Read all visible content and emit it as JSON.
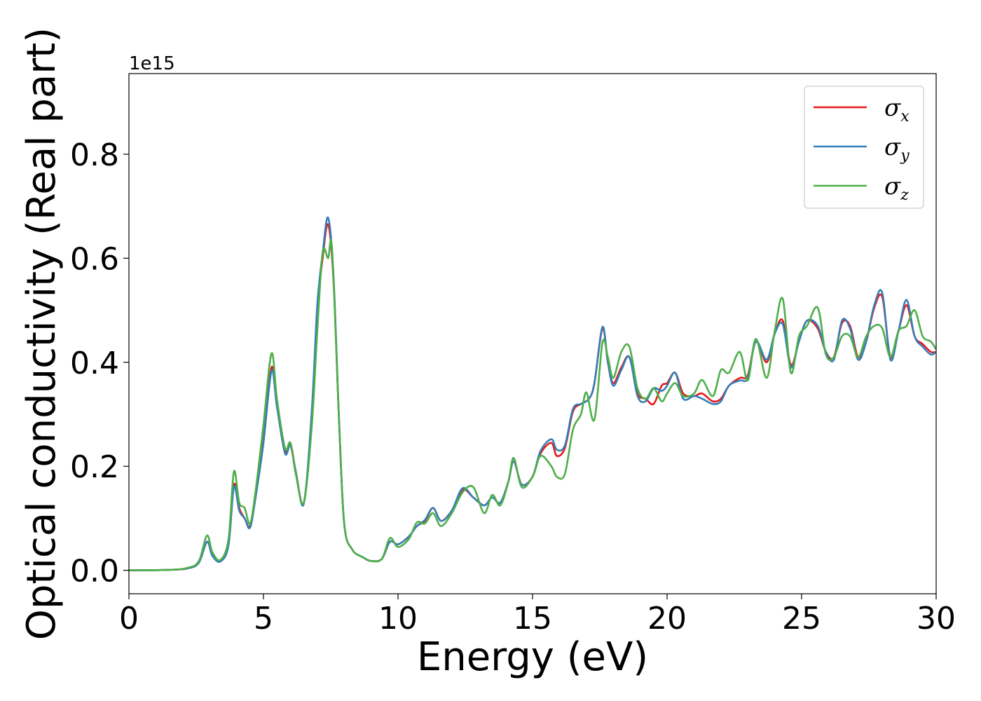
{
  "chart_data": {
    "type": "line",
    "xlabel": "Energy (eV)",
    "ylabel": "Optical conductivity (Real part)",
    "offset_text": "1e15",
    "xlim": [
      0,
      30
    ],
    "ylim": [
      -0.045,
      0.955
    ],
    "x_ticks": [
      0,
      5,
      10,
      15,
      20,
      25,
      30
    ],
    "x_tick_labels": [
      "0",
      "5",
      "10",
      "15",
      "20",
      "25",
      "30"
    ],
    "y_ticks": [
      0.0,
      0.2,
      0.4,
      0.6,
      0.8
    ],
    "y_tick_labels": [
      "0.0",
      "0.2",
      "0.4",
      "0.6",
      "0.8"
    ],
    "grid": false,
    "legend_position": "top-right",
    "series": [
      {
        "name": "σx",
        "symbol": "σ",
        "subscript": "x",
        "color": "#e41a1c",
        "points": [
          [
            0,
            0.0
          ],
          [
            1.5,
            0.001
          ],
          [
            2.2,
            0.004
          ],
          [
            2.6,
            0.015
          ],
          [
            2.9,
            0.055
          ],
          [
            3.1,
            0.03
          ],
          [
            3.4,
            0.018
          ],
          [
            3.7,
            0.05
          ],
          [
            3.9,
            0.165
          ],
          [
            4.1,
            0.12
          ],
          [
            4.3,
            0.1
          ],
          [
            4.5,
            0.085
          ],
          [
            4.7,
            0.14
          ],
          [
            5.0,
            0.25
          ],
          [
            5.3,
            0.39
          ],
          [
            5.5,
            0.32
          ],
          [
            5.8,
            0.23
          ],
          [
            6.0,
            0.245
          ],
          [
            6.2,
            0.19
          ],
          [
            6.5,
            0.13
          ],
          [
            6.8,
            0.3
          ],
          [
            7.0,
            0.5
          ],
          [
            7.2,
            0.6
          ],
          [
            7.4,
            0.665
          ],
          [
            7.6,
            0.56
          ],
          [
            7.8,
            0.3
          ],
          [
            8.0,
            0.09
          ],
          [
            8.3,
            0.04
          ],
          [
            8.7,
            0.025
          ],
          [
            9.0,
            0.018
          ],
          [
            9.4,
            0.022
          ],
          [
            9.7,
            0.055
          ],
          [
            10.0,
            0.05
          ],
          [
            10.4,
            0.065
          ],
          [
            10.7,
            0.085
          ],
          [
            11.0,
            0.095
          ],
          [
            11.3,
            0.12
          ],
          [
            11.6,
            0.095
          ],
          [
            12.0,
            0.115
          ],
          [
            12.4,
            0.155
          ],
          [
            12.8,
            0.14
          ],
          [
            13.2,
            0.125
          ],
          [
            13.5,
            0.14
          ],
          [
            13.8,
            0.13
          ],
          [
            14.1,
            0.17
          ],
          [
            14.3,
            0.21
          ],
          [
            14.6,
            0.165
          ],
          [
            15.0,
            0.18
          ],
          [
            15.3,
            0.225
          ],
          [
            15.7,
            0.245
          ],
          [
            15.9,
            0.22
          ],
          [
            16.2,
            0.235
          ],
          [
            16.5,
            0.305
          ],
          [
            16.8,
            0.32
          ],
          [
            17.1,
            0.33
          ],
          [
            17.3,
            0.36
          ],
          [
            17.6,
            0.465
          ],
          [
            17.8,
            0.4
          ],
          [
            18.0,
            0.36
          ],
          [
            18.3,
            0.39
          ],
          [
            18.6,
            0.41
          ],
          [
            18.9,
            0.34
          ],
          [
            19.2,
            0.33
          ],
          [
            19.5,
            0.32
          ],
          [
            19.8,
            0.355
          ],
          [
            20.0,
            0.36
          ],
          [
            20.3,
            0.38
          ],
          [
            20.6,
            0.34
          ],
          [
            21.0,
            0.335
          ],
          [
            21.3,
            0.34
          ],
          [
            21.7,
            0.325
          ],
          [
            22.0,
            0.33
          ],
          [
            22.3,
            0.355
          ],
          [
            22.7,
            0.37
          ],
          [
            23.0,
            0.375
          ],
          [
            23.3,
            0.44
          ],
          [
            23.7,
            0.4
          ],
          [
            24.0,
            0.455
          ],
          [
            24.3,
            0.48
          ],
          [
            24.6,
            0.395
          ],
          [
            24.9,
            0.44
          ],
          [
            25.2,
            0.48
          ],
          [
            25.6,
            0.465
          ],
          [
            25.9,
            0.42
          ],
          [
            26.2,
            0.41
          ],
          [
            26.5,
            0.475
          ],
          [
            26.8,
            0.47
          ],
          [
            27.1,
            0.41
          ],
          [
            27.4,
            0.44
          ],
          [
            27.7,
            0.505
          ],
          [
            28.0,
            0.525
          ],
          [
            28.3,
            0.41
          ],
          [
            28.6,
            0.46
          ],
          [
            28.9,
            0.51
          ],
          [
            29.2,
            0.45
          ],
          [
            29.5,
            0.435
          ],
          [
            29.8,
            0.42
          ],
          [
            30.0,
            0.42
          ]
        ]
      },
      {
        "name": "σy",
        "symbol": "σ",
        "subscript": "y",
        "color": "#377eb8",
        "points": [
          [
            0,
            0.0
          ],
          [
            1.5,
            0.001
          ],
          [
            2.2,
            0.004
          ],
          [
            2.6,
            0.015
          ],
          [
            2.9,
            0.055
          ],
          [
            3.1,
            0.028
          ],
          [
            3.4,
            0.017
          ],
          [
            3.7,
            0.048
          ],
          [
            3.9,
            0.16
          ],
          [
            4.1,
            0.115
          ],
          [
            4.3,
            0.1
          ],
          [
            4.5,
            0.082
          ],
          [
            4.7,
            0.138
          ],
          [
            5.0,
            0.245
          ],
          [
            5.3,
            0.383
          ],
          [
            5.5,
            0.315
          ],
          [
            5.8,
            0.225
          ],
          [
            6.0,
            0.24
          ],
          [
            6.2,
            0.19
          ],
          [
            6.5,
            0.128
          ],
          [
            6.8,
            0.31
          ],
          [
            7.0,
            0.51
          ],
          [
            7.2,
            0.61
          ],
          [
            7.4,
            0.678
          ],
          [
            7.6,
            0.57
          ],
          [
            7.8,
            0.3
          ],
          [
            8.0,
            0.09
          ],
          [
            8.3,
            0.04
          ],
          [
            8.7,
            0.025
          ],
          [
            9.0,
            0.018
          ],
          [
            9.4,
            0.022
          ],
          [
            9.7,
            0.055
          ],
          [
            10.0,
            0.05
          ],
          [
            10.4,
            0.065
          ],
          [
            10.7,
            0.085
          ],
          [
            11.0,
            0.097
          ],
          [
            11.3,
            0.12
          ],
          [
            11.6,
            0.095
          ],
          [
            12.0,
            0.115
          ],
          [
            12.4,
            0.158
          ],
          [
            12.8,
            0.14
          ],
          [
            13.2,
            0.125
          ],
          [
            13.5,
            0.14
          ],
          [
            13.8,
            0.13
          ],
          [
            14.1,
            0.17
          ],
          [
            14.3,
            0.21
          ],
          [
            14.6,
            0.165
          ],
          [
            15.0,
            0.18
          ],
          [
            15.3,
            0.23
          ],
          [
            15.7,
            0.252
          ],
          [
            15.9,
            0.232
          ],
          [
            16.2,
            0.24
          ],
          [
            16.5,
            0.31
          ],
          [
            16.8,
            0.32
          ],
          [
            17.1,
            0.33
          ],
          [
            17.3,
            0.36
          ],
          [
            17.6,
            0.468
          ],
          [
            17.8,
            0.4
          ],
          [
            18.0,
            0.355
          ],
          [
            18.3,
            0.385
          ],
          [
            18.6,
            0.41
          ],
          [
            18.9,
            0.335
          ],
          [
            19.2,
            0.325
          ],
          [
            19.5,
            0.35
          ],
          [
            19.8,
            0.345
          ],
          [
            20.0,
            0.355
          ],
          [
            20.3,
            0.38
          ],
          [
            20.6,
            0.33
          ],
          [
            21.0,
            0.335
          ],
          [
            21.3,
            0.33
          ],
          [
            21.7,
            0.32
          ],
          [
            22.0,
            0.325
          ],
          [
            22.3,
            0.355
          ],
          [
            22.7,
            0.365
          ],
          [
            23.0,
            0.37
          ],
          [
            23.3,
            0.44
          ],
          [
            23.7,
            0.405
          ],
          [
            24.0,
            0.455
          ],
          [
            24.3,
            0.473
          ],
          [
            24.6,
            0.39
          ],
          [
            24.9,
            0.44
          ],
          [
            25.2,
            0.48
          ],
          [
            25.6,
            0.47
          ],
          [
            25.9,
            0.42
          ],
          [
            26.2,
            0.405
          ],
          [
            26.5,
            0.48
          ],
          [
            26.8,
            0.465
          ],
          [
            27.1,
            0.405
          ],
          [
            27.4,
            0.44
          ],
          [
            27.7,
            0.51
          ],
          [
            28.0,
            0.533
          ],
          [
            28.3,
            0.405
          ],
          [
            28.6,
            0.46
          ],
          [
            28.9,
            0.52
          ],
          [
            29.2,
            0.45
          ],
          [
            29.5,
            0.43
          ],
          [
            29.8,
            0.415
          ],
          [
            30.0,
            0.42
          ]
        ]
      },
      {
        "name": "σz",
        "symbol": "σ",
        "subscript": "z",
        "color": "#4daf4a",
        "points": [
          [
            0,
            0.0
          ],
          [
            1.5,
            0.001
          ],
          [
            2.2,
            0.005
          ],
          [
            2.6,
            0.018
          ],
          [
            2.9,
            0.067
          ],
          [
            3.1,
            0.035
          ],
          [
            3.4,
            0.02
          ],
          [
            3.7,
            0.06
          ],
          [
            3.9,
            0.19
          ],
          [
            4.1,
            0.13
          ],
          [
            4.3,
            0.12
          ],
          [
            4.5,
            0.09
          ],
          [
            4.7,
            0.15
          ],
          [
            5.0,
            0.28
          ],
          [
            5.3,
            0.417
          ],
          [
            5.5,
            0.33
          ],
          [
            5.8,
            0.235
          ],
          [
            6.0,
            0.245
          ],
          [
            6.2,
            0.185
          ],
          [
            6.5,
            0.13
          ],
          [
            6.8,
            0.28
          ],
          [
            7.0,
            0.46
          ],
          [
            7.2,
            0.612
          ],
          [
            7.4,
            0.6
          ],
          [
            7.55,
            0.617
          ],
          [
            7.8,
            0.3
          ],
          [
            8.0,
            0.09
          ],
          [
            8.3,
            0.04
          ],
          [
            8.7,
            0.025
          ],
          [
            9.0,
            0.018
          ],
          [
            9.4,
            0.022
          ],
          [
            9.7,
            0.062
          ],
          [
            10.0,
            0.045
          ],
          [
            10.4,
            0.06
          ],
          [
            10.7,
            0.092
          ],
          [
            11.0,
            0.09
          ],
          [
            11.3,
            0.11
          ],
          [
            11.6,
            0.085
          ],
          [
            12.0,
            0.11
          ],
          [
            12.4,
            0.15
          ],
          [
            12.8,
            0.16
          ],
          [
            13.2,
            0.11
          ],
          [
            13.5,
            0.145
          ],
          [
            13.8,
            0.125
          ],
          [
            14.1,
            0.17
          ],
          [
            14.3,
            0.216
          ],
          [
            14.6,
            0.16
          ],
          [
            15.0,
            0.18
          ],
          [
            15.3,
            0.22
          ],
          [
            15.7,
            0.2
          ],
          [
            15.9,
            0.18
          ],
          [
            16.2,
            0.185
          ],
          [
            16.5,
            0.27
          ],
          [
            16.8,
            0.3
          ],
          [
            17.0,
            0.342
          ],
          [
            17.3,
            0.29
          ],
          [
            17.6,
            0.438
          ],
          [
            17.8,
            0.41
          ],
          [
            18.0,
            0.37
          ],
          [
            18.3,
            0.42
          ],
          [
            18.6,
            0.43
          ],
          [
            18.9,
            0.35
          ],
          [
            19.2,
            0.33
          ],
          [
            19.5,
            0.35
          ],
          [
            19.8,
            0.325
          ],
          [
            20.0,
            0.34
          ],
          [
            20.3,
            0.36
          ],
          [
            20.6,
            0.335
          ],
          [
            21.0,
            0.34
          ],
          [
            21.3,
            0.366
          ],
          [
            21.7,
            0.335
          ],
          [
            22.0,
            0.385
          ],
          [
            22.3,
            0.38
          ],
          [
            22.7,
            0.42
          ],
          [
            23.0,
            0.365
          ],
          [
            23.3,
            0.445
          ],
          [
            23.7,
            0.37
          ],
          [
            24.0,
            0.46
          ],
          [
            24.3,
            0.522
          ],
          [
            24.6,
            0.38
          ],
          [
            24.9,
            0.45
          ],
          [
            25.2,
            0.47
          ],
          [
            25.6,
            0.505
          ],
          [
            25.9,
            0.415
          ],
          [
            26.2,
            0.41
          ],
          [
            26.5,
            0.45
          ],
          [
            26.8,
            0.45
          ],
          [
            27.1,
            0.41
          ],
          [
            27.4,
            0.45
          ],
          [
            27.7,
            0.47
          ],
          [
            28.0,
            0.465
          ],
          [
            28.3,
            0.41
          ],
          [
            28.6,
            0.46
          ],
          [
            28.9,
            0.47
          ],
          [
            29.2,
            0.5
          ],
          [
            29.5,
            0.45
          ],
          [
            29.8,
            0.44
          ],
          [
            30.0,
            0.425
          ]
        ]
      }
    ]
  }
}
